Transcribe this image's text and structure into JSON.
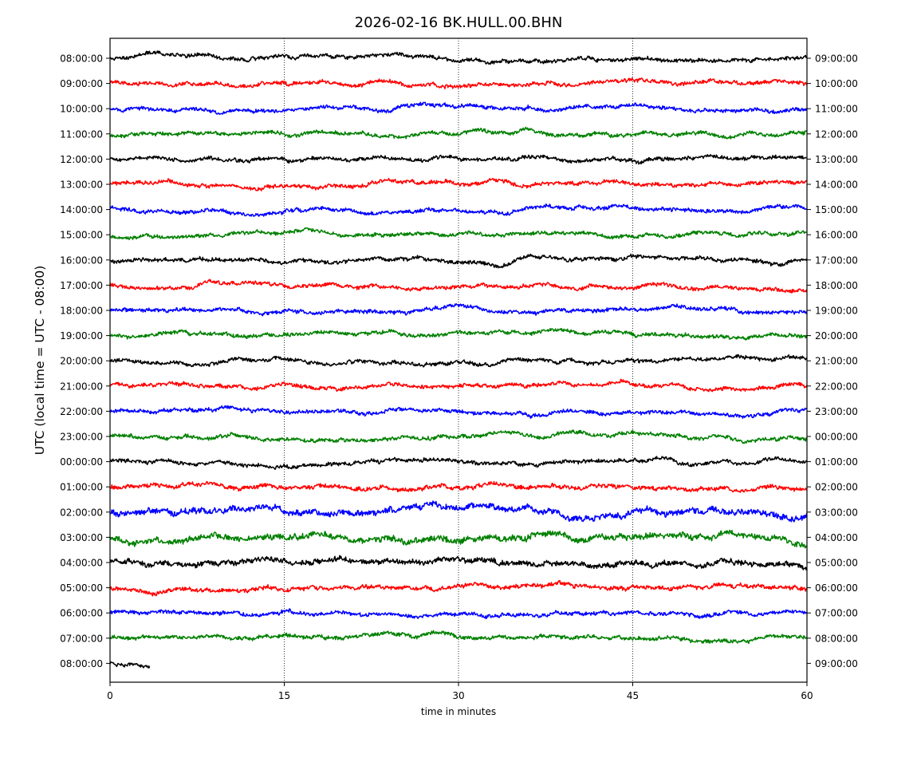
{
  "chart_data": {
    "type": "line",
    "title": "2026-02-16 BK.HULL.00.BHN",
    "xlabel": "time in minutes",
    "ylabel": "UTC (local time = UTC - 08:00)",
    "xlim": [
      0,
      60
    ],
    "x_ticks": [
      0,
      15,
      30,
      45,
      60
    ],
    "x_tick_labels": [
      "0",
      "15",
      "30",
      "45",
      "60"
    ],
    "vertical_grid": "dotted at x ticks",
    "colors": [
      "#000000",
      "#ff0000",
      "#0000ff",
      "#008000"
    ],
    "left_labels": [
      "08:00:00",
      "09:00:00",
      "10:00:00",
      "11:00:00",
      "12:00:00",
      "13:00:00",
      "14:00:00",
      "15:00:00",
      "16:00:00",
      "17:00:00",
      "18:00:00",
      "19:00:00",
      "20:00:00",
      "21:00:00",
      "22:00:00",
      "23:00:00",
      "00:00:00",
      "01:00:00",
      "02:00:00",
      "03:00:00",
      "04:00:00",
      "05:00:00",
      "06:00:00",
      "07:00:00",
      "08:00:00"
    ],
    "right_labels": [
      "09:00:00",
      "10:00:00",
      "11:00:00",
      "12:00:00",
      "13:00:00",
      "14:00:00",
      "15:00:00",
      "16:00:00",
      "17:00:00",
      "18:00:00",
      "19:00:00",
      "20:00:00",
      "21:00:00",
      "22:00:00",
      "23:00:00",
      "00:00:00",
      "01:00:00",
      "02:00:00",
      "03:00:00",
      "04:00:00",
      "05:00:00",
      "06:00:00",
      "07:00:00",
      "08:00:00",
      "09:00:00"
    ],
    "trace_end_minutes": [
      60,
      60,
      60,
      60,
      60,
      60,
      60,
      60,
      60,
      60,
      60,
      60,
      60,
      60,
      60,
      60,
      60,
      60,
      60,
      60,
      60,
      60,
      60,
      60,
      3.4
    ],
    "relative_amplitude": [
      1.0,
      1.0,
      1.0,
      1.0,
      1.0,
      1.0,
      1.0,
      1.0,
      1.0,
      1.0,
      1.0,
      1.0,
      1.0,
      1.0,
      1.0,
      1.0,
      1.0,
      1.1,
      1.6,
      1.6,
      1.4,
      1.1,
      1.0,
      1.0,
      1.0
    ]
  }
}
